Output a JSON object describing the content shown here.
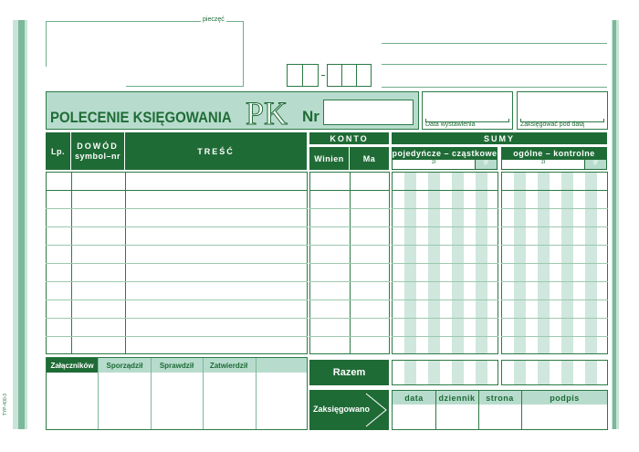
{
  "stamp_label": "pieczęć",
  "title": "POLECENIE KSIĘGOWANIA",
  "doc_code": "PK",
  "nr_label": "Nr",
  "date_issued_label": "Data wystawienia",
  "post_date_label": "Zaksięgować pod datą",
  "columns": {
    "lp": "Lp.",
    "dowod": "DOWÓD",
    "dowod_sub": "symbol–nr",
    "tresc": "TREŚĆ",
    "konto": "KONTO",
    "winien": "Winien",
    "ma": "Ma",
    "sumy": "SUMY",
    "pojedyncze": "pojedyńcze – cząstkowe",
    "ogolne": "ogólne – kontrolne",
    "zl": "zł",
    "gr": "gr"
  },
  "signatures": [
    "Załączników",
    "Sporządził",
    "Sprawdził",
    "Zatwierdził",
    ""
  ],
  "razem": "Razem",
  "zaksiegowano": "Zaksięgowano",
  "posting_cols": [
    "data",
    "dziennik",
    "strona",
    "podpis"
  ],
  "form_code": "TYP-400-3",
  "colors": {
    "dark_green": "#1f6b36",
    "light_green": "#b7dccd"
  }
}
